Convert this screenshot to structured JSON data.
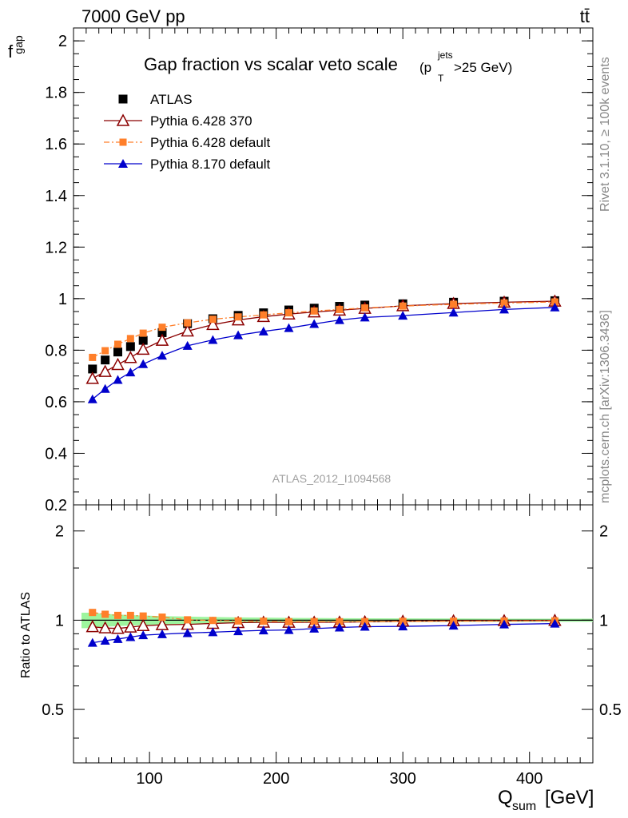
{
  "header": {
    "energy": "7000 GeV pp",
    "process": "tt̄"
  },
  "side": {
    "rivet": "Rivet 3.1.10, ≥ 100k events",
    "mcplots": "mcplots.cern.ch [arXiv:1306.3436]"
  },
  "watermark": "ATLAS_2012_I1094568",
  "chart_data": [
    {
      "type": "line",
      "title": "Gap fraction vs scalar veto scale",
      "title_sub": "(p",
      "title_sup": "jets",
      "title_subT": "T",
      "title_tail": ">25 GeV)",
      "ylabel": "f",
      "ylabel_sub": "gap",
      "xlim": [
        40,
        450
      ],
      "ylim": [
        0.2,
        2.05
      ],
      "yticks": [
        "0.2",
        "0.4",
        "0.6",
        "0.8",
        "1",
        "1.2",
        "1.4",
        "1.6",
        "1.8",
        "2"
      ],
      "legend_position": "top-left",
      "x": [
        55,
        65,
        75,
        85,
        95,
        110,
        130,
        150,
        170,
        190,
        210,
        230,
        250,
        270,
        300,
        340,
        380,
        420
      ],
      "series": [
        {
          "name": "ATLAS",
          "color": "#000000",
          "marker": "square",
          "values": [
            0.727,
            0.762,
            0.793,
            0.814,
            0.838,
            0.868,
            0.903,
            0.922,
            0.935,
            0.945,
            0.956,
            0.963,
            0.97,
            0.975,
            0.98,
            0.986,
            0.99,
            0.992
          ]
        },
        {
          "name": "Pythia 6.428 370",
          "color": "#8b0000",
          "marker": "triangle-open",
          "values": [
            0.69,
            0.717,
            0.744,
            0.771,
            0.803,
            0.838,
            0.874,
            0.899,
            0.917,
            0.93,
            0.94,
            0.948,
            0.955,
            0.962,
            0.972,
            0.981,
            0.986,
            0.99
          ]
        },
        {
          "name": "Pythia 6.428 default",
          "color": "#ff7f2a",
          "marker": "square-small",
          "values": [
            0.772,
            0.798,
            0.823,
            0.845,
            0.866,
            0.889,
            0.906,
            0.92,
            0.929,
            0.937,
            0.945,
            0.952,
            0.958,
            0.964,
            0.971,
            0.978,
            0.983,
            0.987
          ]
        },
        {
          "name": "Pythia 8.170 default",
          "color": "#0000cc",
          "marker": "triangle-filled",
          "values": [
            0.61,
            0.65,
            0.685,
            0.714,
            0.746,
            0.779,
            0.817,
            0.84,
            0.858,
            0.873,
            0.886,
            0.902,
            0.917,
            0.927,
            0.934,
            0.946,
            0.958,
            0.966
          ]
        }
      ]
    },
    {
      "type": "line",
      "ylabel": "Ratio to ATLAS",
      "xlabel": "Q",
      "xlabel_sub": "sum",
      "xlabel_unit": "[GeV]",
      "xlim": [
        40,
        450
      ],
      "ylim": [
        0.33,
        2.45
      ],
      "ylog": true,
      "yticks": [
        "0.5",
        "1",
        "2"
      ],
      "xticks": [
        "100",
        "200",
        "300",
        "400"
      ],
      "band_color": "#9ef59e",
      "x": [
        55,
        65,
        75,
        85,
        95,
        110,
        130,
        150,
        170,
        190,
        210,
        230,
        250,
        270,
        300,
        340,
        380,
        420
      ],
      "band_err": [
        0.06,
        0.05,
        0.045,
        0.04,
        0.037,
        0.032,
        0.028,
        0.025,
        0.022,
        0.02,
        0.018,
        0.017,
        0.016,
        0.015,
        0.014,
        0.013,
        0.012,
        0.012
      ],
      "series": [
        {
          "name": "Pythia 6.428 370",
          "color": "#8b0000",
          "marker": "triangle-open",
          "values": [
            0.95,
            0.941,
            0.938,
            0.947,
            0.958,
            0.965,
            0.968,
            0.975,
            0.981,
            0.984,
            0.983,
            0.984,
            0.985,
            0.987,
            0.992,
            0.995,
            0.996,
            0.998
          ]
        },
        {
          "name": "Pythia 6.428 default",
          "color": "#ff7f2a",
          "marker": "square-small",
          "values": [
            1.062,
            1.047,
            1.038,
            1.038,
            1.033,
            1.024,
            1.003,
            0.998,
            0.994,
            0.992,
            0.988,
            0.989,
            0.988,
            0.989,
            0.991,
            0.992,
            0.993,
            0.995
          ]
        },
        {
          "name": "Pythia 8.170 default",
          "color": "#0000cc",
          "marker": "triangle-filled",
          "values": [
            0.839,
            0.853,
            0.864,
            0.877,
            0.89,
            0.897,
            0.905,
            0.911,
            0.918,
            0.924,
            0.927,
            0.937,
            0.945,
            0.951,
            0.953,
            0.959,
            0.968,
            0.974
          ]
        }
      ]
    }
  ]
}
